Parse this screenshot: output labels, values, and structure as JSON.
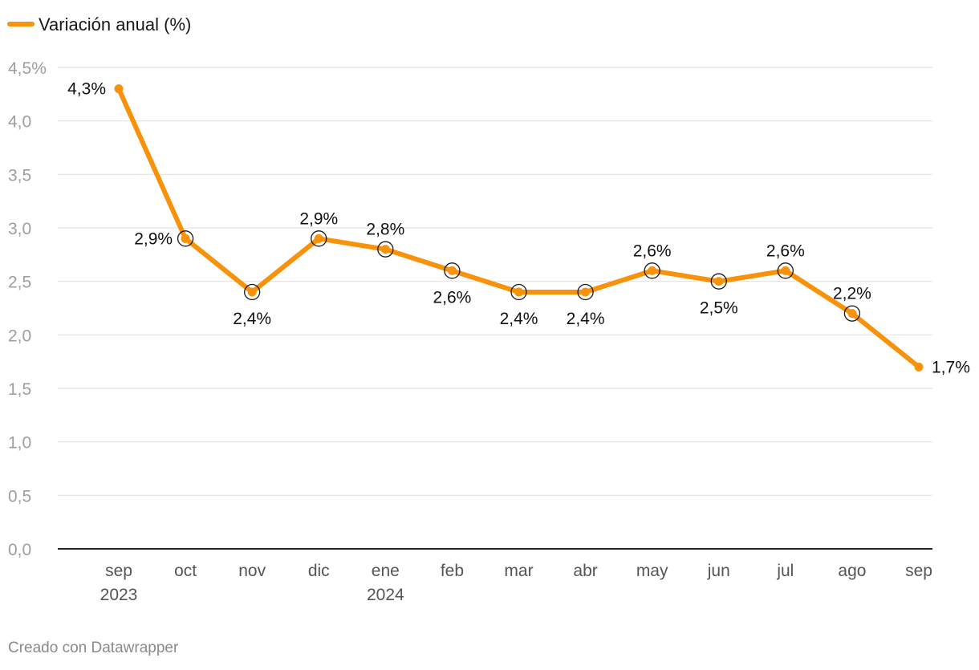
{
  "colors": {
    "series": "#f7920a",
    "grid": "#e2e2e2",
    "baseline": "#222222",
    "ring": "#1a1a1a"
  },
  "credit": "Creado con Datawrapper",
  "chart_data": {
    "type": "line",
    "title": "",
    "xlabel": "",
    "ylabel": "",
    "ylim": [
      0,
      4.5
    ],
    "y_ticks": [
      "0,0",
      "0,5",
      "1,0",
      "1,5",
      "2,0",
      "2,5",
      "3,0",
      "3,5",
      "4,0",
      "4,5%"
    ],
    "y_tick_values": [
      0,
      0.5,
      1.0,
      1.5,
      2.0,
      2.5,
      3.0,
      3.5,
      4.0,
      4.5
    ],
    "grid": true,
    "legend_position": "top-left",
    "categories": [
      "sep",
      "oct",
      "nov",
      "dic",
      "ene",
      "feb",
      "mar",
      "abr",
      "may",
      "jun",
      "jul",
      "ago",
      "sep"
    ],
    "category_years": [
      "2023",
      "",
      "",
      "",
      "2024",
      "",
      "",
      "",
      "",
      "",
      "",
      "",
      ""
    ],
    "series": [
      {
        "name": "Variación anual (%)",
        "values": [
          4.3,
          2.9,
          2.4,
          2.9,
          2.8,
          2.6,
          2.4,
          2.4,
          2.6,
          2.5,
          2.6,
          2.2,
          1.7
        ],
        "labels": [
          "4,3%",
          "2,9%",
          "2,4%",
          "2,9%",
          "2,8%",
          "2,6%",
          "2,4%",
          "2,4%",
          "2,6%",
          "2,5%",
          "2,6%",
          "2,2%",
          "1,7%"
        ],
        "label_positions": [
          "left",
          "left",
          "below",
          "above",
          "above",
          "below",
          "below",
          "below",
          "above",
          "below",
          "above",
          "above",
          "right"
        ],
        "ringed": [
          false,
          true,
          true,
          true,
          true,
          true,
          true,
          true,
          true,
          true,
          true,
          true,
          false
        ]
      }
    ]
  }
}
